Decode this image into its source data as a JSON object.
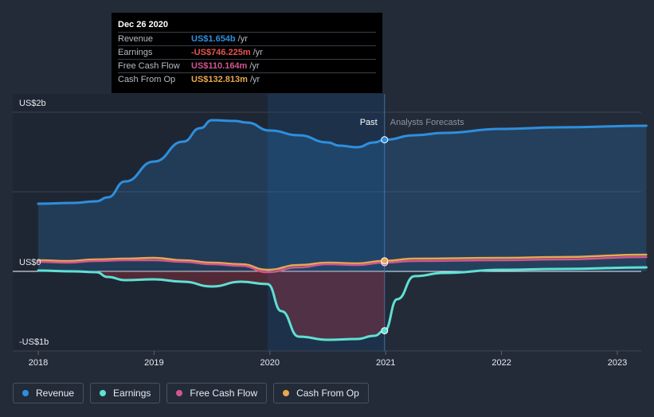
{
  "tooltip": {
    "date": "Dec 26 2020",
    "rows": [
      {
        "label": "Revenue",
        "value": "US$1.654b",
        "unit": "/yr",
        "color": "#2e8fde"
      },
      {
        "label": "Earnings",
        "value": "-US$746.225m",
        "unit": "/yr",
        "color": "#e8554e"
      },
      {
        "label": "Free Cash Flow",
        "value": "US$110.164m",
        "unit": "/yr",
        "color": "#d0568f"
      },
      {
        "label": "Cash From Op",
        "value": "US$132.813m",
        "unit": "/yr",
        "color": "#e9a84f"
      }
    ]
  },
  "regions": {
    "past": "Past",
    "forecast": "Analysts Forecasts"
  },
  "legend": [
    {
      "label": "Revenue",
      "color": "#2e8fde"
    },
    {
      "label": "Earnings",
      "color": "#5fe0d3"
    },
    {
      "label": "Free Cash Flow",
      "color": "#d0568f"
    },
    {
      "label": "Cash From Op",
      "color": "#e9a84f"
    }
  ],
  "chart_data": {
    "type": "line",
    "y_tick_labels": [
      "US$2b",
      "US$0",
      "-US$1b"
    ],
    "x_tick_labels": [
      "2018",
      "2019",
      "2020",
      "2021",
      "2022",
      "2023"
    ],
    "xlim": [
      2018.0,
      2023.25
    ],
    "ylim": [
      -1.0,
      2.0
    ],
    "y_unit": "US$ billions",
    "past_forecast_split": 2020.99,
    "highlight_range": [
      2019.98,
      2020.99
    ],
    "grid": true,
    "legend_position": "bottom-left",
    "series": [
      {
        "name": "Revenue",
        "color": "#2e8fde",
        "fill": true,
        "points": [
          [
            2018.0,
            0.85
          ],
          [
            2018.3,
            0.86
          ],
          [
            2018.5,
            0.88
          ],
          [
            2018.6,
            0.93
          ],
          [
            2018.75,
            1.13
          ],
          [
            2019.0,
            1.38
          ],
          [
            2019.25,
            1.63
          ],
          [
            2019.4,
            1.8
          ],
          [
            2019.5,
            1.9
          ],
          [
            2019.7,
            1.89
          ],
          [
            2019.8,
            1.87
          ],
          [
            2020.0,
            1.77
          ],
          [
            2020.25,
            1.71
          ],
          [
            2020.5,
            1.62
          ],
          [
            2020.6,
            1.58
          ],
          [
            2020.75,
            1.56
          ],
          [
            2020.9,
            1.62
          ],
          [
            2020.99,
            1.654
          ],
          [
            2021.25,
            1.71
          ],
          [
            2021.5,
            1.74
          ],
          [
            2022.0,
            1.79
          ],
          [
            2022.5,
            1.81
          ],
          [
            2023.25,
            1.83
          ]
        ]
      },
      {
        "name": "Earnings",
        "color": "#5fe0d3",
        "fill": true,
        "points": [
          [
            2018.0,
            0.01
          ],
          [
            2018.3,
            0.0
          ],
          [
            2018.5,
            -0.01
          ],
          [
            2018.6,
            -0.07
          ],
          [
            2018.75,
            -0.11
          ],
          [
            2019.0,
            -0.1
          ],
          [
            2019.25,
            -0.13
          ],
          [
            2019.5,
            -0.19
          ],
          [
            2019.75,
            -0.13
          ],
          [
            2019.98,
            -0.16
          ],
          [
            2020.1,
            -0.5
          ],
          [
            2020.25,
            -0.82
          ],
          [
            2020.5,
            -0.86
          ],
          [
            2020.75,
            -0.85
          ],
          [
            2020.9,
            -0.81
          ],
          [
            2020.99,
            -0.746
          ],
          [
            2021.1,
            -0.35
          ],
          [
            2021.25,
            -0.06
          ],
          [
            2021.5,
            -0.02
          ],
          [
            2022.0,
            0.02
          ],
          [
            2022.5,
            0.03
          ],
          [
            2023.25,
            0.05
          ]
        ]
      },
      {
        "name": "Free Cash Flow",
        "color": "#d0568f",
        "fill": false,
        "points": [
          [
            2018.0,
            0.12
          ],
          [
            2018.25,
            0.11
          ],
          [
            2018.5,
            0.13
          ],
          [
            2018.75,
            0.14
          ],
          [
            2019.0,
            0.14
          ],
          [
            2019.25,
            0.12
          ],
          [
            2019.5,
            0.09
          ],
          [
            2019.75,
            0.07
          ],
          [
            2019.98,
            -0.01
          ],
          [
            2020.25,
            0.05
          ],
          [
            2020.5,
            0.09
          ],
          [
            2020.75,
            0.08
          ],
          [
            2020.99,
            0.11
          ],
          [
            2021.25,
            0.13
          ],
          [
            2022.0,
            0.14
          ],
          [
            2022.5,
            0.15
          ],
          [
            2023.25,
            0.18
          ]
        ]
      },
      {
        "name": "Cash From Op",
        "color": "#e9a84f",
        "fill": false,
        "points": [
          [
            2018.0,
            0.14
          ],
          [
            2018.25,
            0.13
          ],
          [
            2018.5,
            0.15
          ],
          [
            2018.75,
            0.16
          ],
          [
            2019.0,
            0.17
          ],
          [
            2019.25,
            0.14
          ],
          [
            2019.5,
            0.11
          ],
          [
            2019.75,
            0.09
          ],
          [
            2019.98,
            0.02
          ],
          [
            2020.25,
            0.08
          ],
          [
            2020.5,
            0.11
          ],
          [
            2020.75,
            0.1
          ],
          [
            2020.99,
            0.133
          ],
          [
            2021.25,
            0.16
          ],
          [
            2022.0,
            0.17
          ],
          [
            2022.5,
            0.18
          ],
          [
            2023.25,
            0.21
          ]
        ]
      }
    ]
  }
}
